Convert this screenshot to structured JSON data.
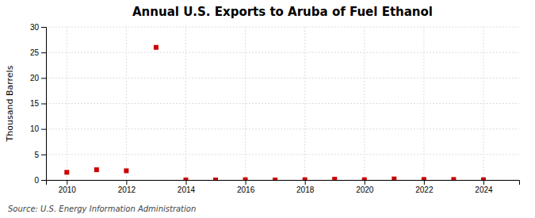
{
  "chart_data": {
    "type": "scatter",
    "title": "Annual U.S. Exports to Aruba of Fuel Ethanol",
    "y_label": "Thousand Barrels",
    "annotations": [
      "Source: U.S. Energy Information Administration"
    ],
    "x": [
      2010,
      2011,
      2012,
      2013,
      2014,
      2015,
      2016,
      2017,
      2018,
      2019,
      2020,
      2021,
      2022,
      2023,
      2024
    ],
    "values": [
      1.5,
      2.0,
      1.8,
      26.0,
      0.0,
      0.0,
      0.05,
      0.0,
      0.05,
      0.15,
      0.05,
      0.2,
      0.1,
      0.1,
      0.05
    ],
    "color": "#cc0000",
    "marker": "square",
    "xlim": [
      2009.3,
      2025.2
    ],
    "ylim": [
      0,
      30
    ],
    "xticks": [
      2010,
      2012,
      2014,
      2016,
      2018,
      2020,
      2022,
      2024
    ],
    "yticks": [
      0,
      5,
      10,
      15,
      20,
      25,
      30
    ],
    "grid": true
  }
}
